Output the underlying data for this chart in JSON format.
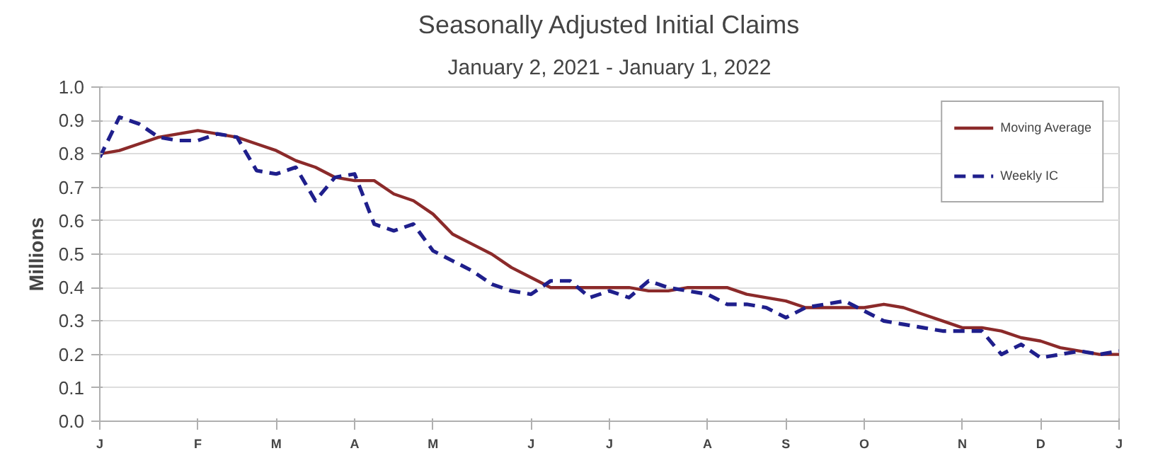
{
  "chart_data": {
    "type": "line",
    "title": "Seasonally Adjusted Initial Claims",
    "subtitle": "January 2, 2021 - January 1, 2022",
    "ylabel": "Millions",
    "categories": [
      "J",
      null,
      null,
      null,
      null,
      "F",
      null,
      null,
      null,
      "M",
      null,
      null,
      null,
      "A",
      null,
      null,
      null,
      "M",
      null,
      null,
      null,
      null,
      "J",
      null,
      null,
      null,
      "J",
      null,
      null,
      null,
      null,
      "A",
      null,
      null,
      null,
      "S",
      null,
      null,
      null,
      "O",
      null,
      null,
      null,
      null,
      "N",
      null,
      null,
      null,
      "D",
      null,
      null,
      null,
      "J"
    ],
    "series": [
      {
        "name": "Moving Average",
        "color": "#8b2a2a",
        "line_style": "solid",
        "values": [
          0.8,
          0.81,
          0.83,
          0.85,
          0.86,
          0.87,
          0.86,
          0.85,
          0.83,
          0.81,
          0.78,
          0.76,
          0.73,
          0.72,
          0.72,
          0.68,
          0.66,
          0.62,
          0.56,
          0.53,
          0.5,
          0.46,
          0.43,
          0.4,
          0.4,
          0.4,
          0.4,
          0.4,
          0.39,
          0.39,
          0.4,
          0.4,
          0.4,
          0.38,
          0.37,
          0.36,
          0.34,
          0.34,
          0.34,
          0.34,
          0.35,
          0.34,
          0.32,
          0.3,
          0.28,
          0.28,
          0.27,
          0.25,
          0.24,
          0.22,
          0.21,
          0.2,
          0.2
        ]
      },
      {
        "name": "Weekly IC",
        "color": "#1f1f8c",
        "line_style": "dashed",
        "values": [
          0.79,
          0.91,
          0.89,
          0.85,
          0.84,
          0.84,
          0.86,
          0.85,
          0.75,
          0.74,
          0.76,
          0.66,
          0.73,
          0.74,
          0.59,
          0.57,
          0.59,
          0.51,
          0.48,
          0.45,
          0.41,
          0.39,
          0.38,
          0.42,
          0.42,
          0.37,
          0.39,
          0.37,
          0.42,
          0.4,
          0.39,
          0.38,
          0.35,
          0.35,
          0.34,
          0.31,
          0.34,
          0.35,
          0.36,
          0.33,
          0.3,
          0.29,
          0.28,
          0.27,
          0.27,
          0.27,
          0.2,
          0.23,
          0.19,
          0.2,
          0.21,
          0.2,
          0.21
        ]
      }
    ],
    "ylim": [
      0.0,
      1.0
    ],
    "yticks": [
      {
        "value": 0,
        "label": "0.0"
      },
      {
        "value": 0.1,
        "label": "0.1"
      },
      {
        "value": 0.2,
        "label": "0.2"
      },
      {
        "value": 0.3,
        "label": "0.3"
      },
      {
        "value": 0.4,
        "label": "0.4"
      },
      {
        "value": 0.5,
        "label": "0.5"
      },
      {
        "value": 0.6,
        "label": "0.6"
      },
      {
        "value": 0.7,
        "label": "0.7"
      },
      {
        "value": 0.8,
        "label": "0.8"
      },
      {
        "value": 0.9,
        "label": "0.9"
      },
      {
        "value": 1.0,
        "label": "1.0"
      }
    ],
    "grid": "y",
    "legend": "top right",
    "marker": "none"
  }
}
